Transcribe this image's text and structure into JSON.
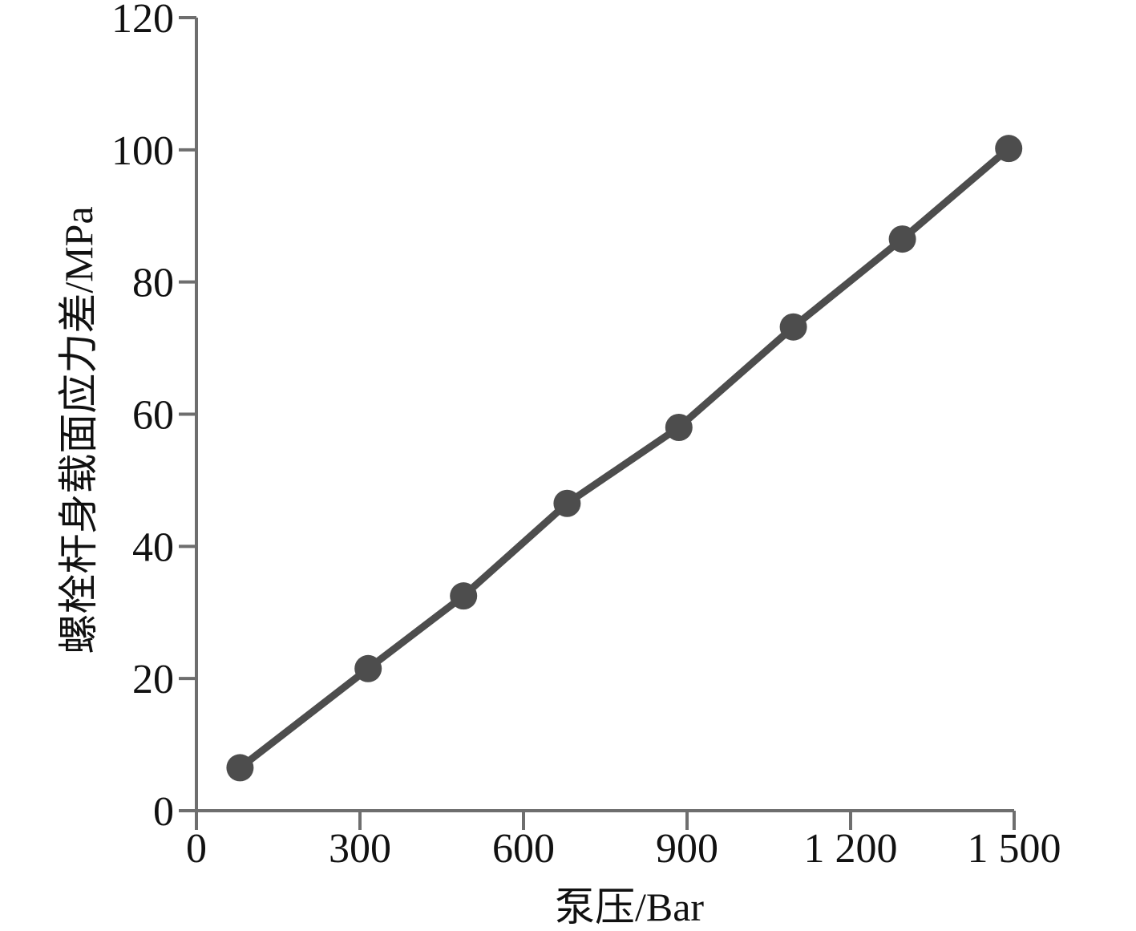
{
  "chart_data": {
    "type": "line",
    "title": "",
    "xlabel": "泵压/Bar",
    "ylabel": "螺栓杆身载面应力差/MPa",
    "xlim": [
      0,
      1500
    ],
    "ylim": [
      0,
      120
    ],
    "x_ticks": [
      0,
      300,
      600,
      900,
      1200,
      1500
    ],
    "x_tick_labels": [
      "0",
      "300",
      "600",
      "900",
      "1 200",
      "1 500"
    ],
    "y_ticks": [
      0,
      20,
      40,
      60,
      80,
      100,
      120
    ],
    "y_tick_labels": [
      "0",
      "20",
      "40",
      "60",
      "80",
      "100",
      "120"
    ],
    "grid": false,
    "series": [
      {
        "x": [
          80,
          315,
          490,
          680,
          885,
          1095,
          1295,
          1490
        ],
        "y": [
          6.5,
          21.5,
          32.5,
          46.5,
          58.0,
          73.2,
          86.5,
          100.2
        ],
        "color": "#4d4d4d",
        "marker": "circle"
      }
    ]
  }
}
